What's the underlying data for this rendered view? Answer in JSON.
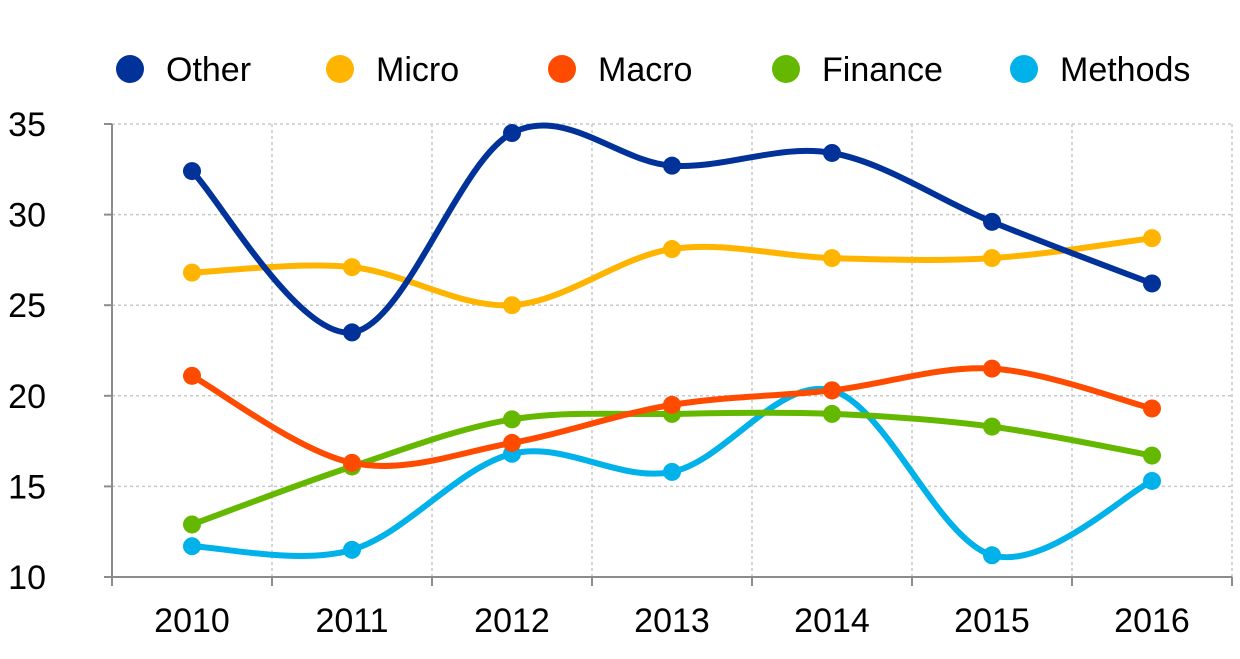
{
  "chart_data": {
    "type": "line",
    "title": "",
    "xlabel": "",
    "ylabel": "",
    "x": [
      "2010",
      "2011",
      "2012",
      "2013",
      "2014",
      "2015",
      "2016"
    ],
    "ylim": [
      10,
      35
    ],
    "yticks": [
      "10",
      "15",
      "20",
      "25",
      "30",
      "35"
    ],
    "grid": true,
    "smooth": true,
    "legend_position": "top",
    "series": [
      {
        "name": "Other",
        "color": "#003299",
        "values": [
          32.4,
          23.5,
          34.5,
          32.7,
          33.4,
          29.6,
          26.2
        ]
      },
      {
        "name": "Micro",
        "color": "#FFB400",
        "values": [
          26.8,
          27.1,
          25.0,
          28.1,
          27.6,
          27.6,
          28.7
        ]
      },
      {
        "name": "Macro",
        "color": "#FF4B00",
        "values": [
          21.1,
          16.3,
          17.4,
          19.5,
          20.3,
          21.5,
          19.3
        ]
      },
      {
        "name": "Finance",
        "color": "#65B800",
        "values": [
          12.9,
          16.1,
          18.7,
          19.0,
          19.0,
          18.3,
          16.7
        ]
      },
      {
        "name": "Methods",
        "color": "#00B1EA",
        "values": [
          11.7,
          11.5,
          16.8,
          15.8,
          20.3,
          11.2,
          15.3
        ]
      }
    ]
  }
}
